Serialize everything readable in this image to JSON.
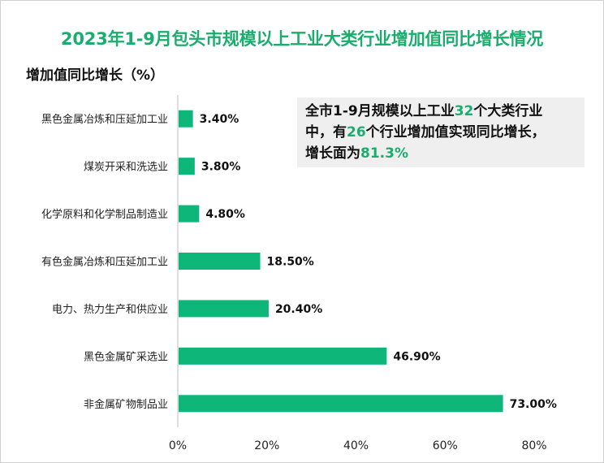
{
  "chart_data": {
    "type": "bar",
    "orientation": "horizontal",
    "title": "2023年1-9月包头市规模以上工业大类行业增加值同比增长情况",
    "ylabel": "增加值同比增长（%）",
    "categories": [
      "黑色金属冶炼和压延加工业",
      "煤炭开采和洗选业",
      "化学原料和化学制品制造业",
      "有色金属冶炼和压延加工业",
      "电力、热力生产和供应业",
      "黑色金属矿采选业",
      "非金属矿物制品业"
    ],
    "values": [
      3.4,
      3.8,
      4.8,
      18.5,
      20.4,
      46.9,
      73.0
    ],
    "data_labels": [
      "3.40%",
      "3.80%",
      "4.80%",
      "18.50%",
      "20.40%",
      "46.90%",
      "73.00%"
    ],
    "xlim": [
      0,
      80
    ],
    "x_ticks": [
      "0%",
      "20%",
      "40%",
      "60%",
      "80%"
    ],
    "grid": false,
    "bar_color": "#0fb67a"
  },
  "annotation": {
    "part1": "全市1-9月规模以上工业",
    "num1": "32",
    "part2": "个大类行业",
    "part3": "中，有",
    "num2": "26",
    "part4": "个行业增加值实现同比增长，",
    "part5": "增长面为",
    "num3": "81.3%"
  }
}
